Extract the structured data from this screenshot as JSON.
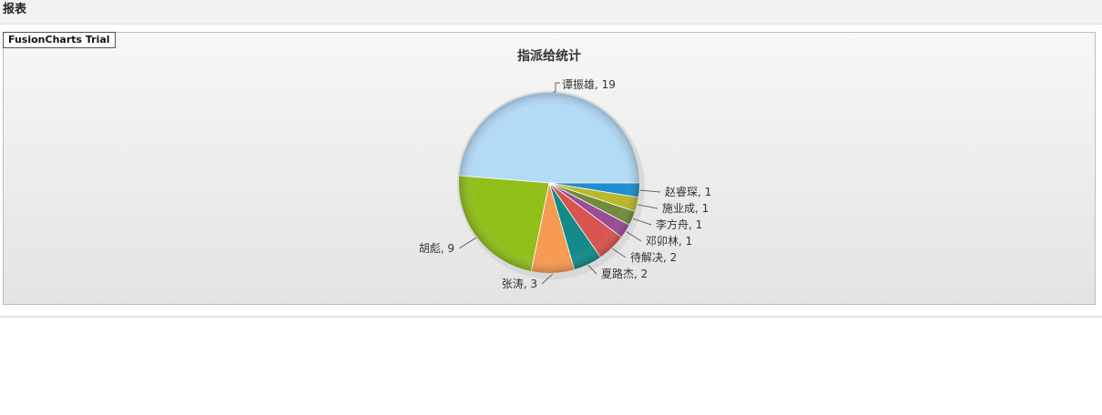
{
  "page": {
    "title": "报表"
  },
  "trial_badge": "FusionCharts Trial",
  "chart_data": {
    "type": "pie",
    "title": "指派给统计",
    "slices": [
      {
        "label": "谭振雄",
        "value": 19,
        "color": "#b3daf7"
      },
      {
        "label": "赵睿琛",
        "value": 1,
        "color": "#1e8ed0"
      },
      {
        "label": "施业成",
        "value": 1,
        "color": "#b9b82a"
      },
      {
        "label": "李方舟",
        "value": 1,
        "color": "#6f8c3c"
      },
      {
        "label": "邓卯林",
        "value": 1,
        "color": "#9a4c96"
      },
      {
        "label": "待解决",
        "value": 2,
        "color": "#d9534f"
      },
      {
        "label": "夏路杰",
        "value": 2,
        "color": "#138a87"
      },
      {
        "label": "张涛",
        "value": 3,
        "color": "#f79a52"
      },
      {
        "label": "胡彪",
        "value": 9,
        "color": "#90bf1a"
      }
    ]
  }
}
